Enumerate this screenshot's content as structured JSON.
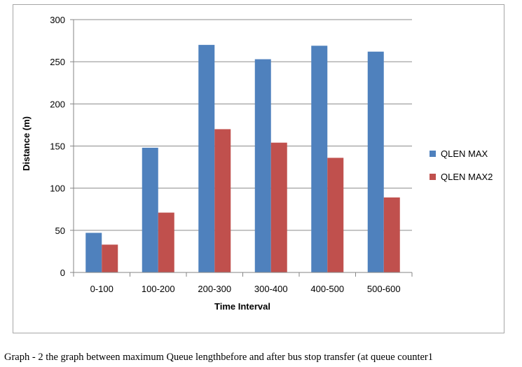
{
  "caption": "Graph - 2 the graph between maximum Queue lengthbefore and after bus stop transfer (at queue counter1",
  "chart_data": {
    "type": "bar",
    "title": "",
    "xlabel": "Time Interval",
    "ylabel": "Distance (m)",
    "ylim": [
      0,
      300
    ],
    "yticks": [
      0,
      50,
      100,
      150,
      200,
      250,
      300
    ],
    "categories": [
      "0-100",
      "100-200",
      "200-300",
      "300-400",
      "400-500",
      "500-600"
    ],
    "series": [
      {
        "name": "QLEN MAX",
        "color": "#4f81bd",
        "values": [
          47,
          148,
          270,
          253,
          269,
          262
        ]
      },
      {
        "name": "QLEN MAX2",
        "color": "#c0504d",
        "values": [
          33,
          71,
          170,
          154,
          136,
          89
        ]
      }
    ],
    "grid": true,
    "legend": "right"
  }
}
